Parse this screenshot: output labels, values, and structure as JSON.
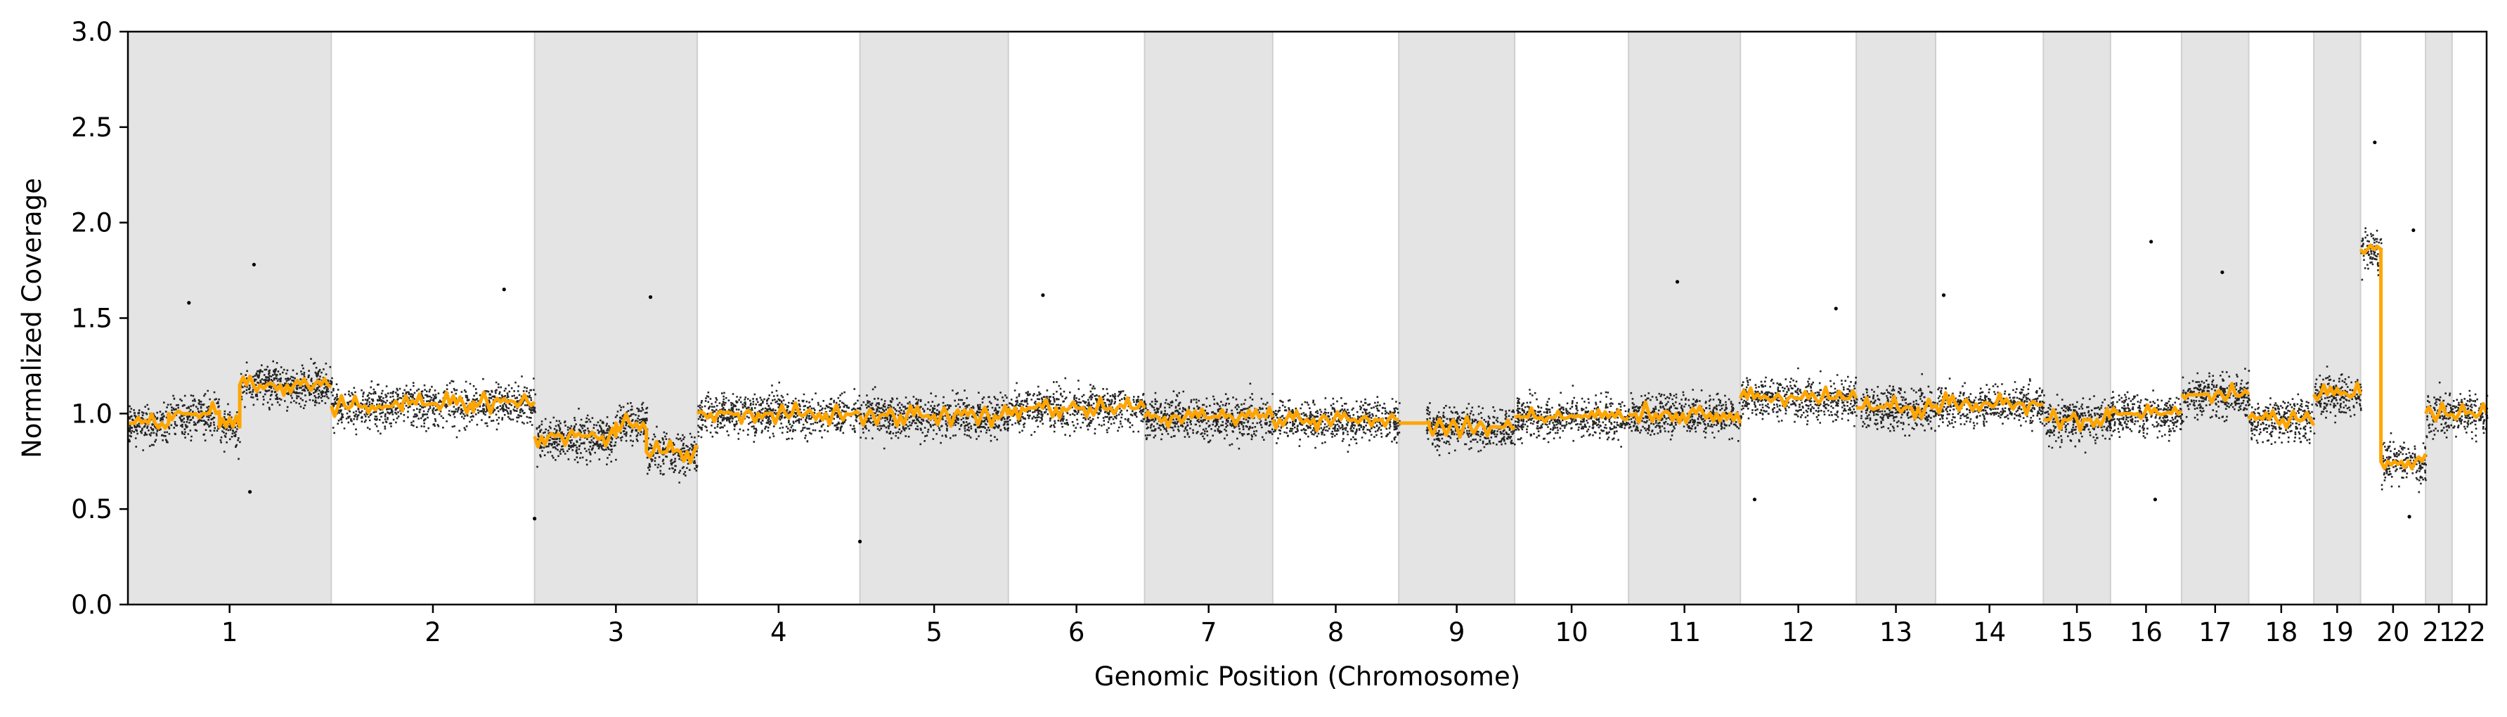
{
  "chart_data": {
    "type": "scatter",
    "title": "",
    "xlabel": "Genomic Position (Chromosome)",
    "ylabel": "Normalized Coverage",
    "ylim": [
      0,
      3.0
    ],
    "yticks": [
      "0.0",
      "0.5",
      "1.0",
      "1.5",
      "2.0",
      "2.5",
      "3.0"
    ],
    "grid": false,
    "legend": "none",
    "background_bands": "alternating grey shading per chromosome",
    "colors": {
      "points": "#000000",
      "segments": "#ffa500",
      "band": "#e4e4e4"
    },
    "chromosomes": [
      {
        "label": "1",
        "span": [
          0.0,
          1.0
        ],
        "band": true,
        "level": 1.0,
        "segments": [
          [
            0.0,
            0.2,
            0.95
          ],
          [
            0.2,
            0.45,
            1.0
          ],
          [
            0.45,
            0.55,
            0.93
          ],
          [
            0.55,
            1.0,
            1.15
          ]
        ],
        "spikes": [
          [
            0.62,
            1.78
          ],
          [
            0.3,
            1.58
          ],
          [
            0.6,
            0.59
          ]
        ]
      },
      {
        "label": "2",
        "span": [
          1.0,
          2.0
        ],
        "band": false,
        "level": 1.05,
        "segments": [
          [
            1.0,
            1.35,
            1.04
          ],
          [
            1.35,
            1.7,
            1.05
          ],
          [
            1.7,
            2.0,
            1.06
          ]
        ],
        "spikes": [
          [
            1.85,
            1.65
          ]
        ]
      },
      {
        "label": "3",
        "span": [
          2.0,
          2.8
        ],
        "band": true,
        "level": 0.9,
        "segments": [
          [
            2.0,
            2.4,
            0.88
          ],
          [
            2.4,
            2.55,
            0.95
          ],
          [
            2.55,
            2.8,
            0.8
          ]
        ],
        "spikes": [
          [
            2.0,
            0.45
          ],
          [
            2.57,
            1.61
          ]
        ]
      },
      {
        "label": "4",
        "span": [
          2.8,
          3.6
        ],
        "band": false,
        "level": 1.0,
        "segments": [
          [
            2.8,
            3.6,
            1.0
          ]
        ],
        "spikes": []
      },
      {
        "label": "5",
        "span": [
          3.6,
          4.33
        ],
        "band": true,
        "level": 0.99,
        "segments": [
          [
            3.6,
            4.33,
            0.99
          ]
        ],
        "spikes": [
          [
            3.6,
            0.33
          ]
        ]
      },
      {
        "label": "6",
        "span": [
          4.33,
          5.0
        ],
        "band": false,
        "level": 1.03,
        "segments": [
          [
            4.33,
            5.0,
            1.03
          ]
        ],
        "spikes": [
          [
            4.5,
            1.62
          ]
        ]
      },
      {
        "label": "7",
        "span": [
          5.0,
          5.63
        ],
        "band": true,
        "level": 0.98,
        "segments": [
          [
            5.0,
            5.63,
            0.98
          ]
        ],
        "spikes": []
      },
      {
        "label": "8",
        "span": [
          5.63,
          6.25
        ],
        "band": false,
        "level": 0.97,
        "segments": [
          [
            5.63,
            6.25,
            0.97
          ]
        ],
        "spikes": []
      },
      {
        "label": "9",
        "span": [
          6.25,
          6.82
        ],
        "band": true,
        "level": 0.95,
        "segments": [
          [
            6.25,
            6.4,
            0.95
          ],
          [
            6.4,
            6.82,
            0.93
          ]
        ],
        "spikes": [],
        "gap": [
          6.25,
          6.38
        ]
      },
      {
        "label": "10",
        "span": [
          6.82,
          7.38
        ],
        "band": false,
        "level": 0.98,
        "segments": [
          [
            6.82,
            7.38,
            0.98
          ]
        ],
        "spikes": []
      },
      {
        "label": "11",
        "span": [
          7.38,
          7.93
        ],
        "band": true,
        "level": 1.0,
        "segments": [
          [
            7.38,
            7.93,
            1.0
          ]
        ],
        "spikes": [
          [
            7.62,
            1.69
          ]
        ]
      },
      {
        "label": "12",
        "span": [
          7.93,
          8.5
        ],
        "band": false,
        "level": 1.08,
        "segments": [
          [
            7.93,
            8.5,
            1.08
          ]
        ],
        "spikes": [
          [
            8.0,
            0.55
          ],
          [
            8.4,
            1.55
          ]
        ]
      },
      {
        "label": "13",
        "span": [
          8.5,
          8.89
        ],
        "band": true,
        "level": 1.03,
        "segments": [
          [
            8.5,
            8.89,
            1.03
          ]
        ],
        "spikes": [],
        "gap": [
          8.5,
          8.52
        ]
      },
      {
        "label": "14",
        "span": [
          8.89,
          9.42
        ],
        "band": false,
        "level": 1.05,
        "segments": [
          [
            8.89,
            9.42,
            1.05
          ]
        ],
        "spikes": [
          [
            8.93,
            1.62
          ]
        ]
      },
      {
        "label": "15",
        "span": [
          9.42,
          9.75
        ],
        "band": true,
        "level": 0.97,
        "segments": [
          [
            9.42,
            9.75,
            0.97
          ]
        ],
        "spikes": []
      },
      {
        "label": "16",
        "span": [
          9.75,
          10.1
        ],
        "band": false,
        "level": 1.0,
        "segments": [
          [
            9.75,
            10.1,
            1.0
          ]
        ],
        "spikes": [
          [
            9.95,
            1.9
          ],
          [
            9.97,
            0.55
          ]
        ]
      },
      {
        "label": "17",
        "span": [
          10.1,
          10.43
        ],
        "band": true,
        "level": 1.1,
        "segments": [
          [
            10.1,
            10.43,
            1.1
          ]
        ],
        "spikes": [
          [
            10.3,
            1.74
          ]
        ]
      },
      {
        "label": "18",
        "span": [
          10.43,
          10.75
        ],
        "band": false,
        "level": 0.97,
        "segments": [
          [
            10.43,
            10.75,
            0.97
          ]
        ],
        "spikes": []
      },
      {
        "label": "19",
        "span": [
          10.75,
          10.98
        ],
        "band": true,
        "level": 1.1,
        "segments": [
          [
            10.75,
            10.98,
            1.1
          ]
        ],
        "spikes": []
      },
      {
        "label": "20",
        "span": [
          10.98,
          11.3
        ],
        "band": false,
        "level": 0.9,
        "segments": [
          [
            10.98,
            11.08,
            1.86
          ],
          [
            11.08,
            11.3,
            0.75
          ]
        ],
        "spikes": [
          [
            11.05,
            2.42
          ],
          [
            11.24,
            1.96
          ],
          [
            11.22,
            0.46
          ]
        ]
      },
      {
        "label": "21",
        "span": [
          11.3,
          11.43
        ],
        "band": true,
        "level": 1.0,
        "segments": [
          [
            11.3,
            11.43,
            1.0
          ]
        ],
        "spikes": []
      },
      {
        "label": "22",
        "span": [
          11.43,
          11.6
        ],
        "band": false,
        "level": 1.0,
        "segments": [
          [
            11.43,
            11.6,
            1.0
          ]
        ],
        "spikes": []
      }
    ]
  }
}
